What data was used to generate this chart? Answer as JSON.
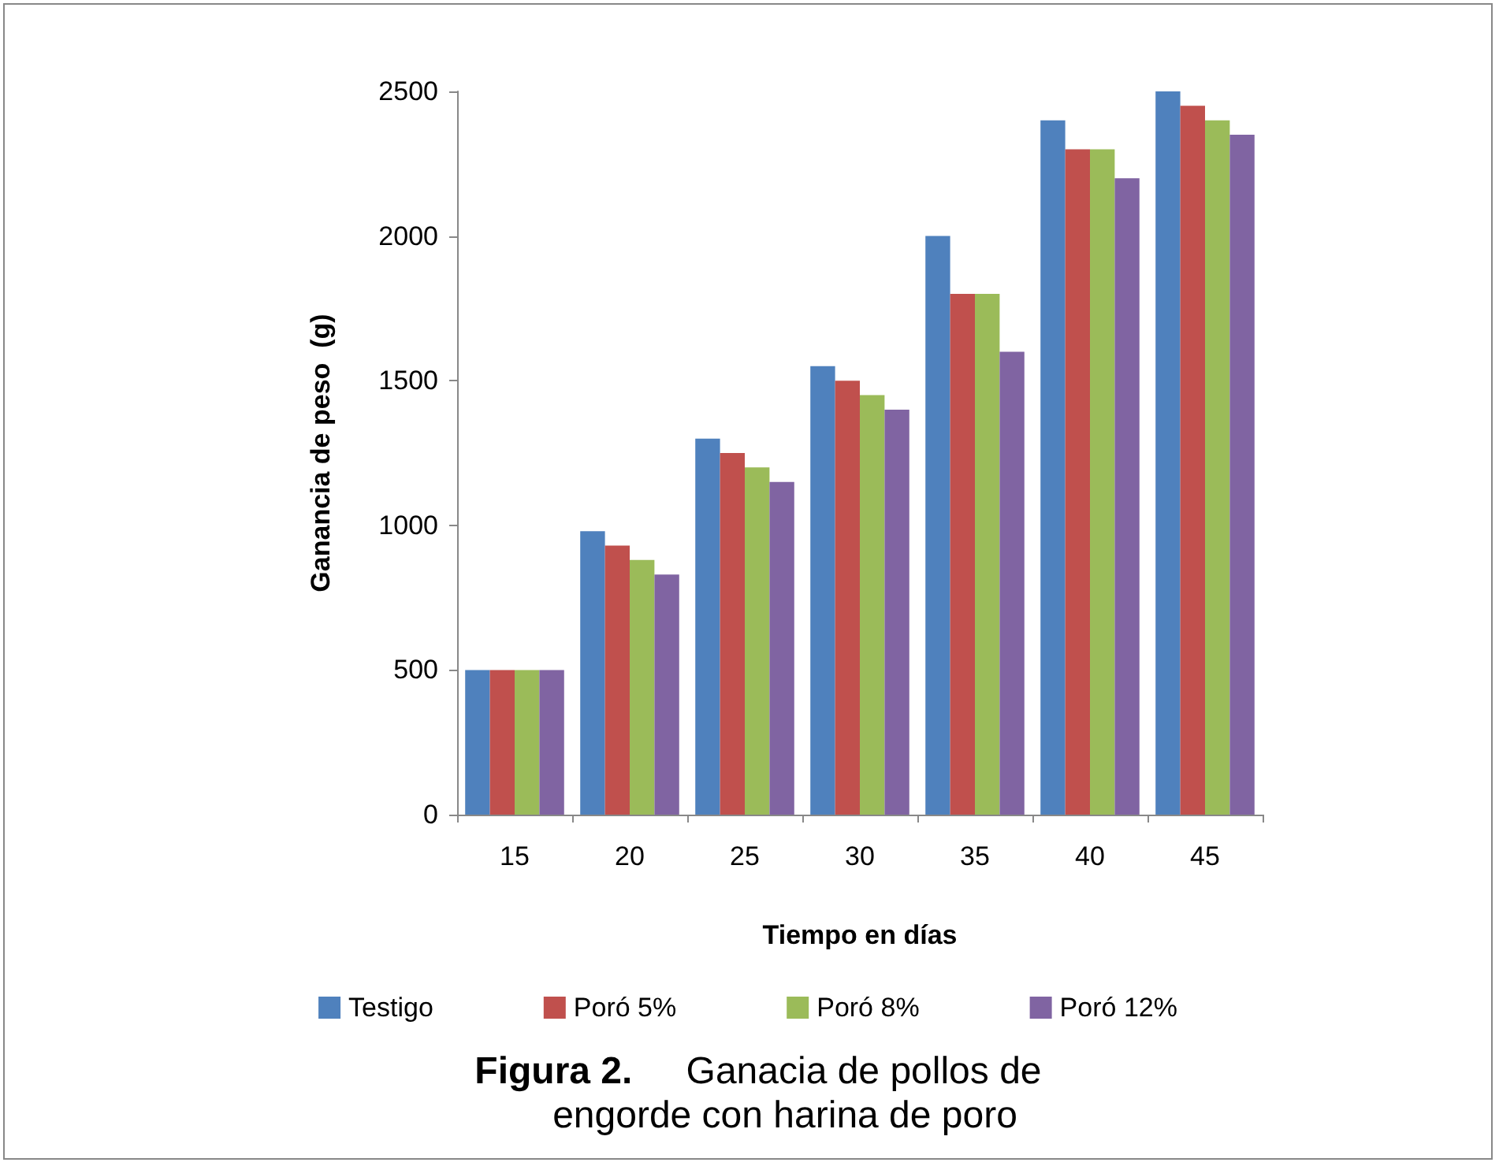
{
  "chart_data": {
    "type": "bar",
    "title": "Figura 2. Ganacia de pollos de engorde con harina de poro",
    "xlabel": "Tiempo en días",
    "ylabel": "Ganancia de peso  (g)",
    "categories": [
      "15",
      "20",
      "25",
      "30",
      "35",
      "40",
      "45"
    ],
    "series": [
      {
        "name": "Testigo",
        "color": "#4f81bd",
        "values": [
          500,
          980,
          1300,
          1550,
          2000,
          2400,
          2500
        ]
      },
      {
        "name": "Poró 5%",
        "color": "#c0504d",
        "values": [
          500,
          930,
          1250,
          1500,
          1800,
          2300,
          2450
        ]
      },
      {
        "name": "Poró 8%",
        "color": "#9bbb59",
        "values": [
          500,
          880,
          1200,
          1450,
          1800,
          2300,
          2400
        ]
      },
      {
        "name": "Poró 12%",
        "color": "#8064a2",
        "values": [
          500,
          830,
          1150,
          1400,
          1600,
          2200,
          2350
        ]
      }
    ],
    "ylim": [
      0,
      2500
    ],
    "yticks": [
      0,
      500,
      1000,
      1500,
      2000,
      2500
    ],
    "grid": false,
    "legend": "bottom"
  }
}
